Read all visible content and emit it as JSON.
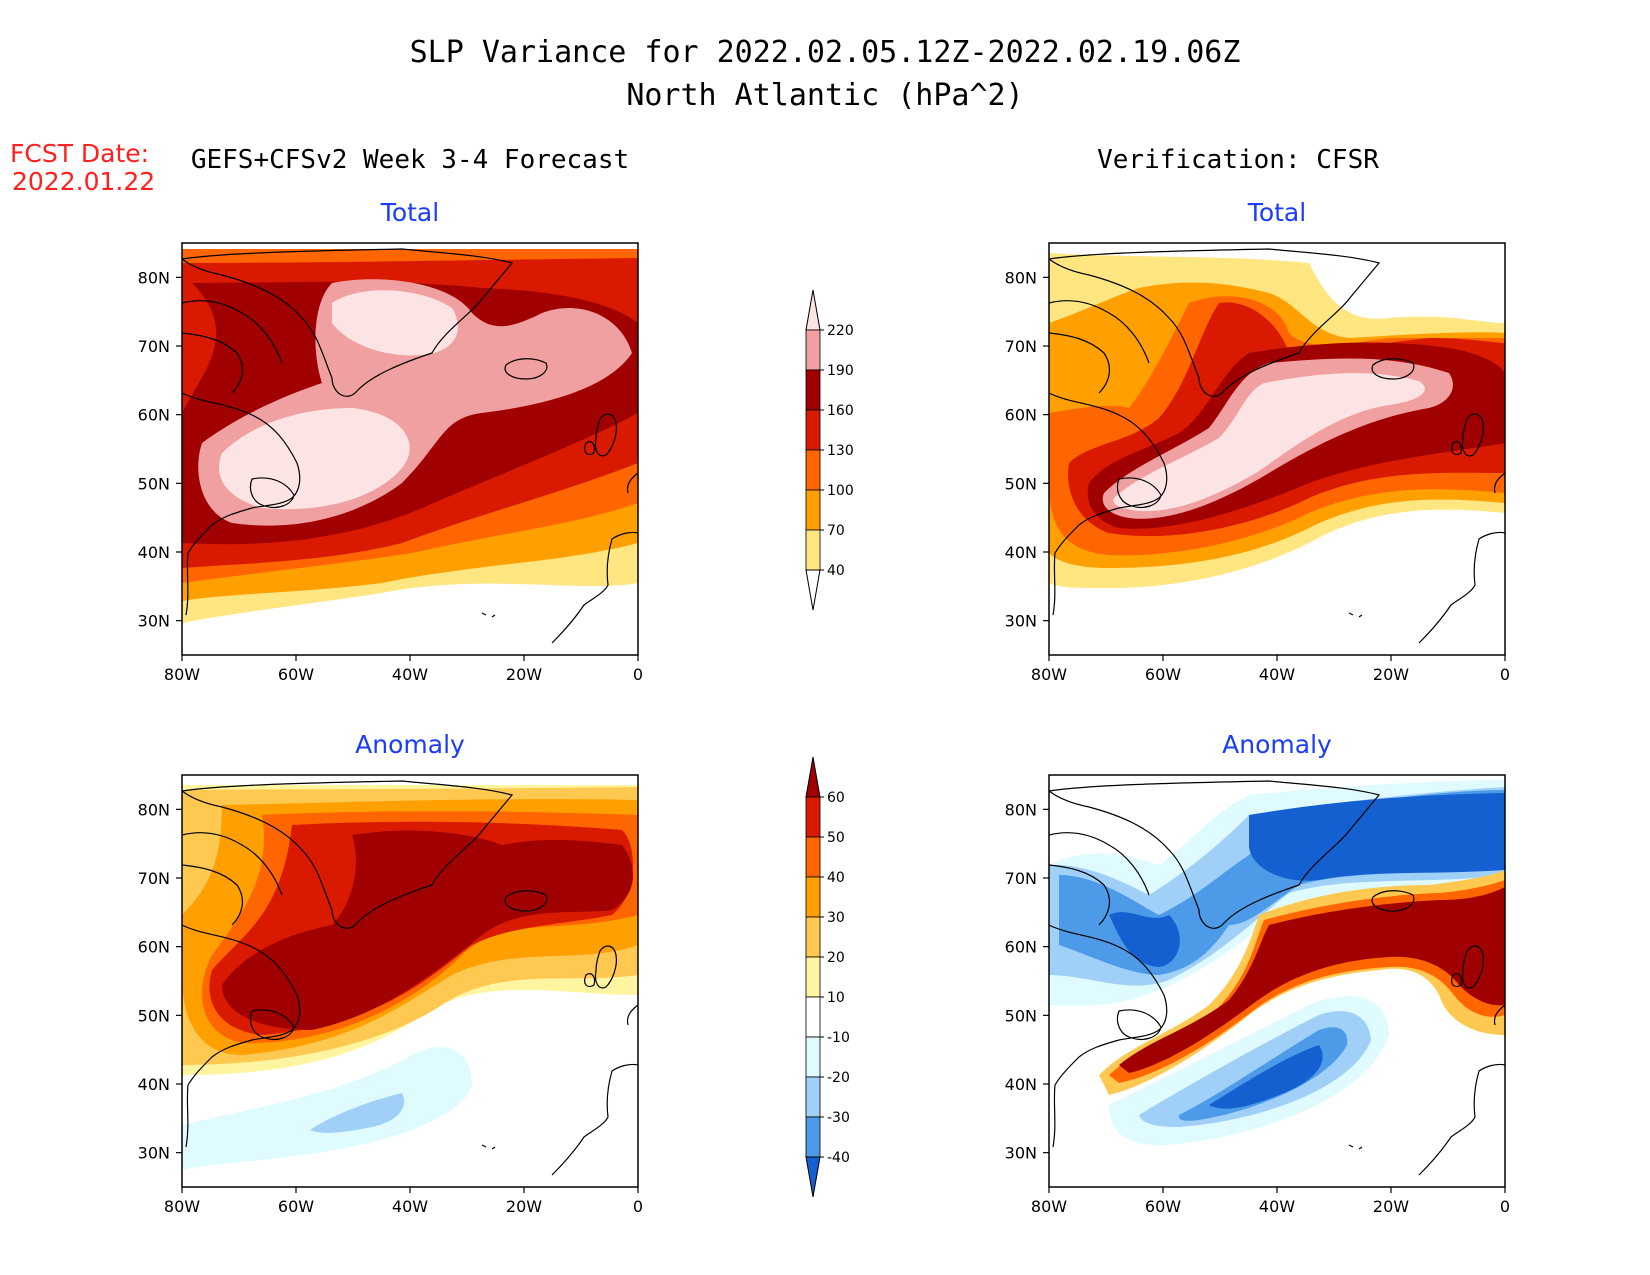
{
  "title": {
    "line1": "SLP Variance for 2022.02.05.12Z-2022.02.19.06Z",
    "line2": "North Atlantic (hPa^2)"
  },
  "fcst_date": {
    "label": "FCST Date:",
    "value": "2022.01.22"
  },
  "columns": {
    "left": "GEFS+CFSv2 Week 3-4 Forecast",
    "right": "Verification: CFSR"
  },
  "panel_titles": {
    "total": "Total",
    "anomaly": "Anomaly"
  },
  "map": {
    "lon_range": [
      -80,
      0
    ],
    "lat_range": [
      25,
      85
    ],
    "lat_ticks": [
      "80N",
      "70N",
      "60N",
      "50N",
      "40N",
      "30N"
    ],
    "lon_ticks": [
      "80W",
      "60W",
      "40W",
      "20W",
      "0"
    ]
  },
  "colorbars": {
    "total": {
      "levels": [
        "220",
        "190",
        "160",
        "130",
        "100",
        "70",
        "40"
      ],
      "colors": [
        "#fce4e4",
        "#f0a0a0",
        "#a00000",
        "#d91a00",
        "#ff6600",
        "#ffa000",
        "#ffe680"
      ]
    },
    "anomaly": {
      "levels": [
        "60",
        "50",
        "40",
        "30",
        "20",
        "10",
        "-10",
        "-20",
        "-30",
        "-40"
      ],
      "colors": [
        "#a00000",
        "#d91a00",
        "#ff6600",
        "#ffa000",
        "#ffc850",
        "#fff5a0",
        "#ffffff",
        "#e0fbff",
        "#a0d0f8",
        "#4c9ae8",
        "#1560d0"
      ]
    }
  }
}
